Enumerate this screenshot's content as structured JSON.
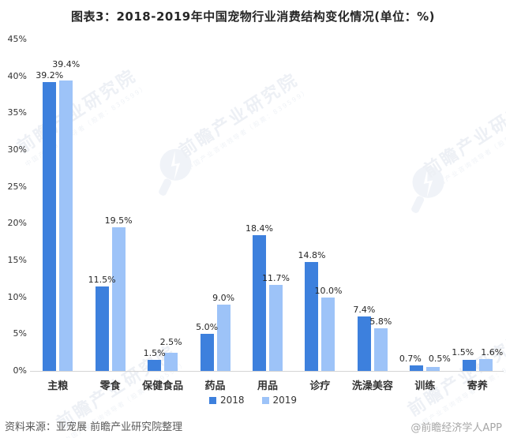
{
  "title": "图表3：2018-2019年中国宠物行业消费结构变化情况(单位：%)",
  "chart_data": {
    "type": "bar",
    "title": "图表3：2018-2019年中国宠物行业消费结构变化情况(单位：%)",
    "categories": [
      "主粮",
      "零食",
      "保健食品",
      "药品",
      "用品",
      "诊疗",
      "洗澡美容",
      "训练",
      "寄养"
    ],
    "series": [
      {
        "name": "2018",
        "color": "#3d80dd",
        "values": [
          39.2,
          11.5,
          1.5,
          5.0,
          18.4,
          14.8,
          7.4,
          0.7,
          1.5
        ]
      },
      {
        "name": "2019",
        "color": "#9dc3f8",
        "values": [
          39.4,
          19.5,
          2.5,
          9.0,
          11.7,
          10.0,
          5.8,
          0.5,
          1.6
        ]
      }
    ],
    "value_suffix": "%",
    "xlabel": "",
    "ylabel": "",
    "ylim": [
      0,
      45
    ],
    "y_tick_step": 5,
    "y_tick_labels": [
      "0%",
      "5%",
      "10%",
      "15%",
      "20%",
      "25%",
      "30%",
      "35%",
      "40%",
      "45%"
    ],
    "grid": false,
    "legend_position": "bottom"
  },
  "footer": {
    "source": "资料来源：亚宠展 前瞻产业研究院整理",
    "credit": "@前瞻经济学人APP"
  },
  "watermark": {
    "text": "前瞻产业研究院",
    "subtext": "中国产业咨询领导者（股票：839599）"
  },
  "colors": {
    "series_2018": "#3d80dd",
    "series_2019": "#9dc3f8",
    "axis_line": "#d4d4d4",
    "text": "#262626"
  }
}
